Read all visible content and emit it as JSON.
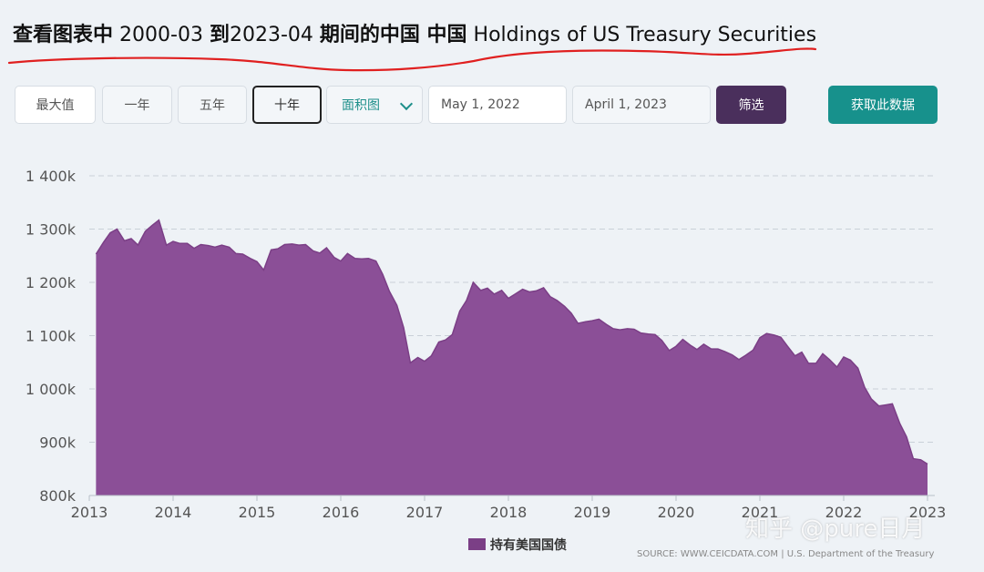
{
  "header": {
    "title_bold_1": "查看图表中",
    "title_range_start": "2000-03",
    "title_bold_2": "到",
    "title_range_end": "2023-04",
    "title_bold_3": "期间的中国 中国",
    "title_series": "Holdings of US Treasury Securities"
  },
  "controls": {
    "range_buttons": [
      "最大值",
      "一年",
      "五年",
      "十年"
    ],
    "active_range": "十年",
    "chart_type": "面积图",
    "start_date": "May 1, 2022",
    "end_date": "April 1, 2023",
    "filter_label": "筛选",
    "get_data_label": "获取此数据"
  },
  "colors": {
    "area_fill": "#8b4f97",
    "area_stroke": "#7b3f86",
    "filter_button": "#4a2f5c",
    "get_data_button": "#17918c",
    "underline": "#e02020"
  },
  "chart_data": {
    "type": "area",
    "title": "",
    "xlabel": "",
    "ylabel": "",
    "ylim": [
      800000,
      1400000
    ],
    "yticks": [
      800000,
      900000,
      1000000,
      1100000,
      1200000,
      1300000,
      1400000
    ],
    "ytick_labels": [
      "800k",
      "900k",
      "1 000k",
      "1 100k",
      "1 200k",
      "1 300k",
      "1 400k"
    ],
    "xlim": [
      2013.0,
      2023.0
    ],
    "xticks": [
      2013,
      2014,
      2015,
      2016,
      2017,
      2018,
      2019,
      2020,
      2021,
      2022,
      2023
    ],
    "xtick_labels": [
      "2013",
      "2014",
      "2015",
      "2016",
      "2017",
      "2018",
      "2019",
      "2020",
      "2021",
      "2022",
      "2023"
    ],
    "grid": true,
    "legend": "bottom-center",
    "series": [
      {
        "name": "持有美国国债",
        "x": [
          2013.08,
          2013.17,
          2013.25,
          2013.33,
          2013.42,
          2013.5,
          2013.58,
          2013.67,
          2013.75,
          2013.83,
          2013.92,
          2014.0,
          2014.08,
          2014.17,
          2014.25,
          2014.33,
          2014.42,
          2014.5,
          2014.58,
          2014.67,
          2014.75,
          2014.83,
          2014.92,
          2015.0,
          2015.08,
          2015.17,
          2015.25,
          2015.33,
          2015.42,
          2015.5,
          2015.58,
          2015.67,
          2015.75,
          2015.83,
          2015.92,
          2016.0,
          2016.08,
          2016.17,
          2016.25,
          2016.33,
          2016.42,
          2016.5,
          2016.58,
          2016.67,
          2016.75,
          2016.83,
          2016.92,
          2017.0,
          2017.08,
          2017.17,
          2017.25,
          2017.33,
          2017.42,
          2017.5,
          2017.58,
          2017.67,
          2017.75,
          2017.83,
          2017.92,
          2018.0,
          2018.08,
          2018.17,
          2018.25,
          2018.33,
          2018.42,
          2018.5,
          2018.58,
          2018.67,
          2018.75,
          2018.83,
          2018.92,
          2019.0,
          2019.08,
          2019.17,
          2019.25,
          2019.33,
          2019.42,
          2019.5,
          2019.58,
          2019.67,
          2019.75,
          2019.83,
          2019.92,
          2020.0,
          2020.08,
          2020.17,
          2020.25,
          2020.33,
          2020.42,
          2020.5,
          2020.58,
          2020.67,
          2020.75,
          2020.83,
          2020.92,
          2021.0,
          2021.08,
          2021.17,
          2021.25,
          2021.33,
          2021.42,
          2021.5,
          2021.58,
          2021.67,
          2021.75,
          2021.83,
          2021.92,
          2022.0,
          2022.08,
          2022.17,
          2022.25,
          2022.33,
          2022.42,
          2022.5,
          2022.58,
          2022.67,
          2022.75,
          2022.83,
          2022.92,
          2023.0
        ],
        "values": [
          1253000,
          1275000,
          1293000,
          1300000,
          1278000,
          1282000,
          1270000,
          1296000,
          1307000,
          1317000,
          1270000,
          1277000,
          1273000,
          1273000,
          1264000,
          1271000,
          1269000,
          1266000,
          1270000,
          1266000,
          1254000,
          1253000,
          1245000,
          1239000,
          1223000,
          1261000,
          1263000,
          1271000,
          1272000,
          1270000,
          1271000,
          1259000,
          1255000,
          1265000,
          1247000,
          1240000,
          1254000,
          1245000,
          1244000,
          1245000,
          1240000,
          1215000,
          1183000,
          1157000,
          1115000,
          1049000,
          1059000,
          1052000,
          1062000,
          1088000,
          1092000,
          1102000,
          1146000,
          1166000,
          1200000,
          1185000,
          1189000,
          1178000,
          1185000,
          1170000,
          1178000,
          1187000,
          1182000,
          1184000,
          1190000,
          1173000,
          1166000,
          1155000,
          1142000,
          1123000,
          1126000,
          1128000,
          1131000,
          1121000,
          1113000,
          1111000,
          1113000,
          1112000,
          1105000,
          1103000,
          1102000,
          1091000,
          1072000,
          1080000,
          1093000,
          1082000,
          1074000,
          1084000,
          1075000,
          1075000,
          1070000,
          1064000,
          1055000,
          1063000,
          1073000,
          1096000,
          1104000,
          1101000,
          1097000,
          1080000,
          1062000,
          1069000,
          1048000,
          1048000,
          1066000,
          1055000,
          1041000,
          1060000,
          1054000,
          1039000,
          1003000,
          981000,
          968000,
          970000,
          972000,
          935000,
          910000,
          869000,
          867000,
          859000
        ]
      }
    ]
  },
  "legend": {
    "label": "持有美国国债"
  },
  "footer": {
    "source": "SOURCE: WWW.CEICDATA.COM | U.S. Department of the Treasury",
    "watermark": "知乎 @pure日月"
  }
}
